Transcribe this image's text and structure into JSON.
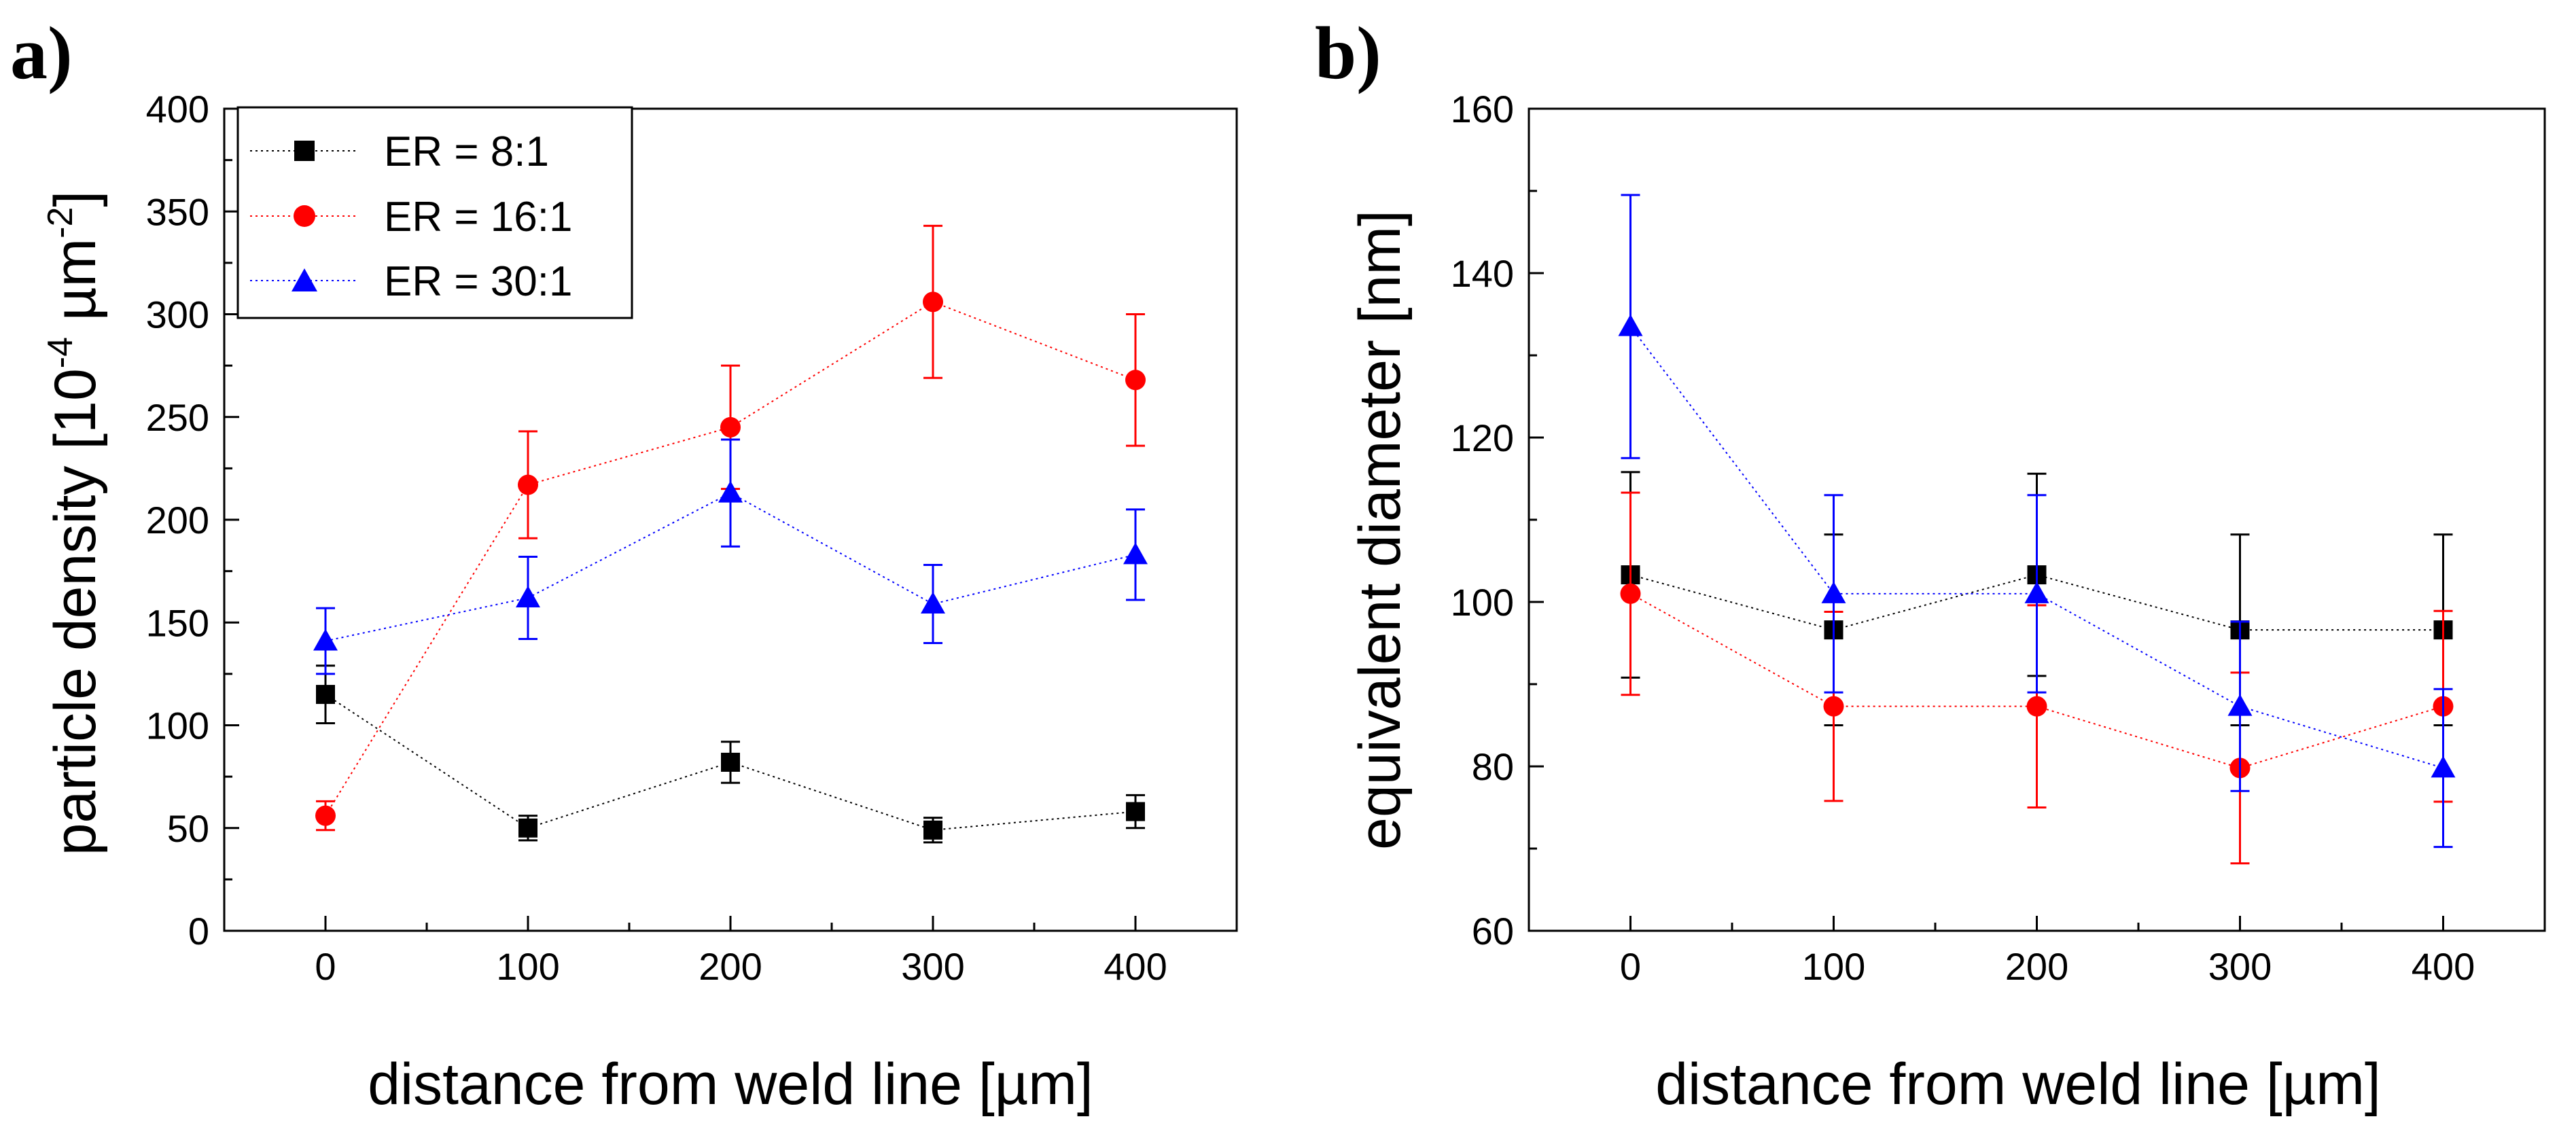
{
  "chart_data": [
    {
      "type": "line",
      "panel_label": "a)",
      "title": "",
      "xlabel": "distance from weld line [µm]",
      "ylabel": {
        "prefix": "particle density [10",
        "sup1": "-4",
        "middle": " µm",
        "sup2": "-2",
        "suffix": "]"
      },
      "x": [
        0,
        100,
        200,
        300,
        400
      ],
      "xlim": [
        -50,
        450
      ],
      "ylim": [
        0,
        400
      ],
      "xticks": [
        "0",
        "100",
        "200",
        "300",
        "400"
      ],
      "yticks": [
        "0",
        "50",
        "100",
        "150",
        "200",
        "250",
        "300",
        "350",
        "400"
      ],
      "legend_position": "top-left",
      "series": [
        {
          "name": "ER = 8:1",
          "color": "#000000",
          "marker": "square",
          "values": [
            115,
            50,
            82,
            49,
            58
          ],
          "errors": [
            14,
            6,
            10,
            6,
            8
          ]
        },
        {
          "name": "ER = 16:1",
          "color": "#ff0000",
          "marker": "circle",
          "values": [
            56,
            217,
            245,
            306,
            268
          ],
          "errors": [
            7,
            26,
            30,
            37,
            32
          ]
        },
        {
          "name": "ER = 30:1",
          "color": "#0000ff",
          "marker": "triangle",
          "values": [
            141,
            162,
            213,
            159,
            183
          ],
          "errors": [
            16,
            20,
            26,
            19,
            22
          ]
        }
      ]
    },
    {
      "type": "line",
      "panel_label": "b)",
      "title": "",
      "xlabel": "distance from weld line [µm]",
      "ylabel": "equivalent diameter [nm]",
      "x": [
        0,
        100,
        200,
        300,
        400
      ],
      "xlim": [
        -50,
        450
      ],
      "ylim": [
        60,
        160
      ],
      "xticks": [
        "0",
        "100",
        "200",
        "300",
        "400"
      ],
      "yticks": [
        "60",
        "80",
        "100",
        "120",
        "140",
        "160"
      ],
      "series": [
        {
          "name": "ER = 8:1",
          "color": "#000000",
          "marker": "square",
          "values": [
            103.3,
            96.6,
            103.3,
            96.6,
            96.6
          ],
          "errors": [
            12.5,
            11.6,
            12.3,
            11.6,
            11.6
          ]
        },
        {
          "name": "ER = 16:1",
          "color": "#ff0000",
          "marker": "circle",
          "values": [
            101,
            87.3,
            87.3,
            79.8,
            87.3
          ],
          "errors": [
            12.3,
            11.5,
            12.3,
            11.6,
            11.6
          ]
        },
        {
          "name": "ER = 30:1",
          "color": "#0000ff",
          "marker": "triangle",
          "values": [
            133.5,
            101,
            101,
            87.3,
            79.8
          ],
          "errors": [
            16,
            12,
            12,
            10.3,
            9.6
          ]
        }
      ]
    }
  ]
}
